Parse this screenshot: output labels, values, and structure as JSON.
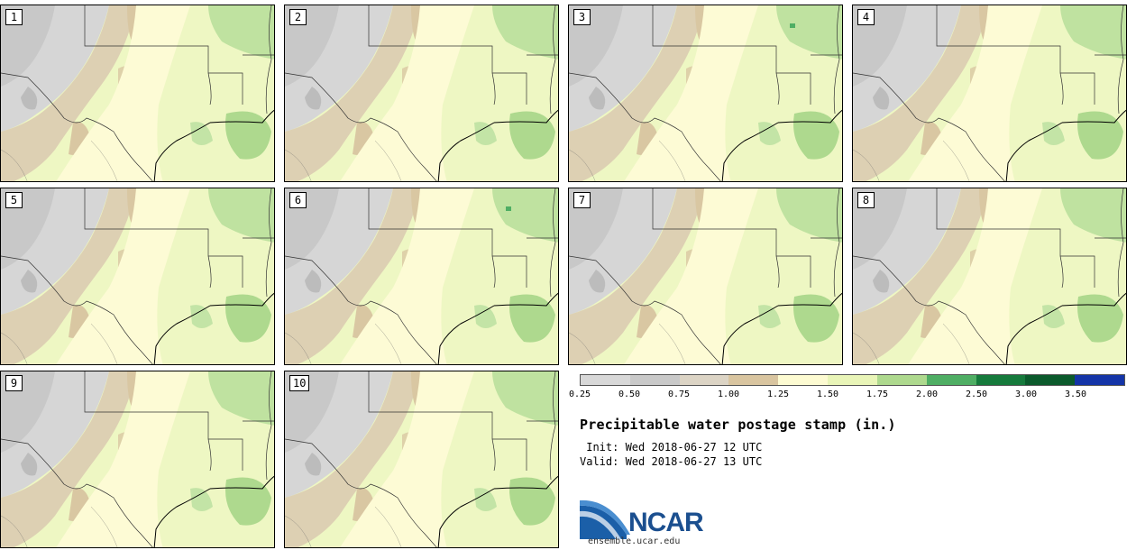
{
  "panels": [
    "1",
    "2",
    "3",
    "4",
    "5",
    "6",
    "7",
    "8",
    "9",
    "10"
  ],
  "colorbar": {
    "colors": [
      "#d8d8d8",
      "#c9c9c9",
      "#dcd4c5",
      "#d9c5a0",
      "#fdfbd2",
      "#e9f5b8",
      "#aed98e",
      "#4fae64",
      "#167a3c",
      "#0b5a2c",
      "#1434a7"
    ],
    "ticks": [
      "0.25",
      "0.50",
      "0.75",
      "1.00",
      "1.25",
      "1.50",
      "1.75",
      "2.00",
      "2.50",
      "3.00",
      "3.50"
    ]
  },
  "title": "Precipitable water postage stamp (in.)",
  "init_line": " Init: Wed 2018-06-27 12 UTC",
  "valid_line": "Valid: Wed 2018-06-27 13 UTC",
  "logo": {
    "text": "NCAR",
    "url": "ensemble.ucar.edu"
  }
}
